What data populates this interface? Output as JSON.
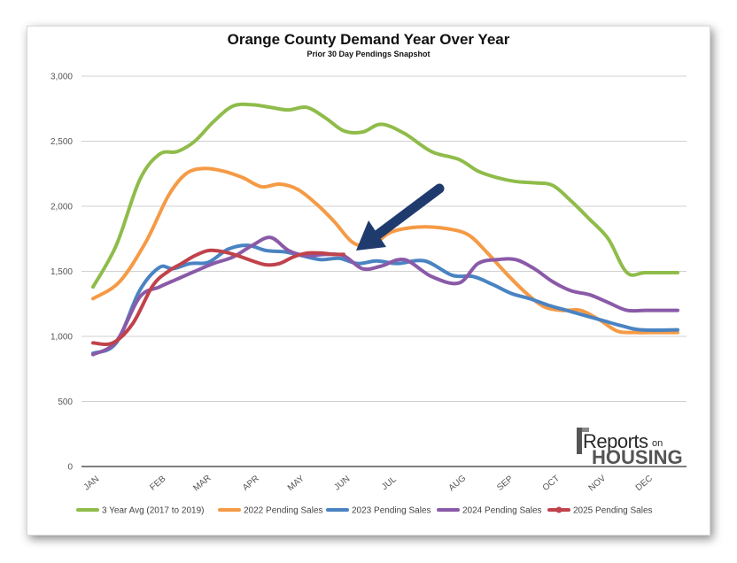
{
  "chart_data": {
    "type": "line",
    "title": "Orange County Demand Year Over Year",
    "subtitle": "Prior 30 Day Pendings Snapshot",
    "xlabel": "",
    "ylabel": "",
    "ylim": [
      0,
      3000
    ],
    "yticks": [
      0,
      500,
      1000,
      1500,
      2000,
      2500,
      3000
    ],
    "ytick_labels": [
      "0",
      "500",
      "1,000",
      "1,500",
      "2,000",
      "2,500",
      "3,000"
    ],
    "months": [
      "JAN",
      "FEB",
      "MAR",
      "APR",
      "MAY",
      "JUN",
      "JUL",
      "AUG",
      "SEP",
      "OCT",
      "NOV",
      "DEC"
    ],
    "grid": true,
    "legend_position": "bottom",
    "series": [
      {
        "name": "3 Year Avg (2017 to 2019)",
        "color": "#8fbc4a",
        "x": [
          1,
          1.35,
          1.7,
          2.0,
          2.4,
          2.8,
          3.2,
          3.6,
          4.0,
          4.4,
          4.8,
          5.2,
          5.6,
          6.0,
          6.4,
          6.8,
          7.2,
          7.6,
          8.0,
          8.4,
          8.8,
          9.2,
          9.6,
          10.0,
          10.4,
          10.8,
          11.2,
          11.6,
          12.0,
          12.6
        ],
        "values": [
          1380,
          1700,
          2200,
          2400,
          2420,
          2500,
          2650,
          2770,
          2780,
          2760,
          2740,
          2760,
          2680,
          2580,
          2570,
          2630,
          2560,
          2420,
          2360,
          2270,
          2220,
          2190,
          2180,
          2160,
          2040,
          1900,
          1750,
          1490,
          1490,
          1490
        ]
      },
      {
        "name": "2022 Pending Sales",
        "color": "#f59a45",
        "x": [
          1,
          1.4,
          1.8,
          2.2,
          2.6,
          3.0,
          3.4,
          3.8,
          4.2,
          4.6,
          5.0,
          5.4,
          5.8,
          6.2,
          6.6,
          7.0,
          7.4,
          7.8,
          8.2,
          8.6,
          9.0,
          9.4,
          9.8,
          10.2,
          10.6,
          11.0,
          11.4,
          11.8,
          12.2,
          12.6
        ],
        "values": [
          1290,
          1420,
          1730,
          2080,
          2250,
          2290,
          2270,
          2220,
          2150,
          2170,
          2130,
          2020,
          1880,
          1720,
          1700,
          1800,
          1840,
          1830,
          1780,
          1640,
          1480,
          1340,
          1230,
          1200,
          1200,
          1130,
          1040,
          1030,
          1030,
          1030
        ]
      },
      {
        "name": "2023 Pending Sales",
        "color": "#4a83c2",
        "x": [
          1,
          1.35,
          1.7,
          2.0,
          2.3,
          2.7,
          3.1,
          3.5,
          3.9,
          4.3,
          4.7,
          5.1,
          5.5,
          5.9,
          6.3,
          6.7,
          7.1,
          7.5,
          7.9,
          8.3,
          8.7,
          9.1,
          9.5,
          9.9,
          10.3,
          10.7,
          11.1,
          11.5,
          11.9,
          12.6
        ],
        "values": [
          870,
          950,
          1350,
          1530,
          1520,
          1560,
          1570,
          1670,
          1700,
          1660,
          1650,
          1620,
          1590,
          1600,
          1560,
          1580,
          1560,
          1580,
          1470,
          1460,
          1400,
          1330,
          1290,
          1240,
          1200,
          1160,
          1120,
          1080,
          1050,
          1050
        ]
      },
      {
        "name": "2024 Pending Sales",
        "color": "#8a5aa8",
        "x": [
          1,
          1.35,
          1.7,
          2.0,
          2.4,
          2.8,
          3.2,
          3.6,
          4.0,
          4.4,
          4.8,
          5.2,
          5.6,
          6.0,
          6.4,
          6.8,
          7.2,
          7.6,
          8.0,
          8.4,
          8.8,
          9.2,
          9.6,
          10.0,
          10.4,
          10.8,
          11.2,
          11.6,
          12.0,
          12.6
        ],
        "values": [
          860,
          960,
          1300,
          1380,
          1440,
          1500,
          1560,
          1610,
          1700,
          1760,
          1660,
          1620,
          1630,
          1620,
          1520,
          1540,
          1590,
          1460,
          1410,
          1560,
          1590,
          1590,
          1520,
          1420,
          1350,
          1320,
          1260,
          1200,
          1200,
          1200
        ]
      },
      {
        "name": "2025 Pending Sales",
        "color": "#c0424b",
        "x": [
          1,
          1.3,
          1.6,
          1.9,
          2.2,
          2.5,
          2.8,
          3.1,
          3.4,
          3.7,
          4.0,
          4.3,
          4.6,
          4.9,
          5.2,
          5.5,
          5.8,
          6.0
        ],
        "values": [
          950,
          950,
          1100,
          1390,
          1500,
          1560,
          1620,
          1660,
          1650,
          1620,
          1580,
          1550,
          1560,
          1610,
          1640,
          1640,
          1630,
          1630
        ]
      }
    ],
    "annotation": {
      "type": "arrow",
      "color": "#1f3b6e",
      "from": [
        7.2,
        2100
      ],
      "to": [
        5.8,
        1640
      ]
    }
  },
  "logo": {
    "word1": "Reports",
    "word2": "on",
    "word3": "HOUSING"
  }
}
